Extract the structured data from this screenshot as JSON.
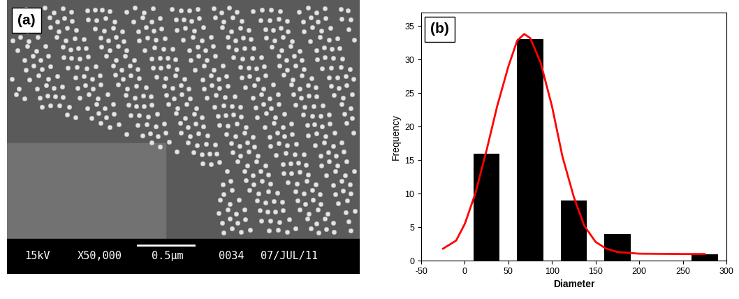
{
  "chart_data": [
    {
      "type": "image",
      "title": "(a)",
      "annotations": [
        "15kV",
        "X50,000",
        "0.5μm",
        "0034",
        "07/JUL/11"
      ]
    },
    {
      "type": "histogram",
      "title": "(b)",
      "x_label": "Diameter",
      "y_label": "Frequency",
      "bins": [
        0,
        50,
        100,
        150,
        200,
        250,
        300
      ],
      "values": [
        16,
        33,
        9,
        4,
        0,
        1
      ],
      "color": "#000000",
      "series": [
        {
          "type": "line",
          "color": "#ff0000",
          "line_style": "solid",
          "x": [
            -25,
            -10,
            0,
            12,
            25,
            37,
            50,
            60,
            68,
            75,
            87,
            100,
            112,
            125,
            137,
            150,
            162,
            175,
            200,
            250,
            275
          ],
          "values": [
            1.8,
            3.0,
            5.5,
            10,
            16.5,
            23,
            29,
            32.8,
            33.8,
            33.2,
            29.5,
            23,
            15.5,
            9.5,
            5.2,
            2.8,
            1.8,
            1.3,
            1.05,
            1.0,
            1.0
          ]
        }
      ],
      "xlim": [
        -50,
        300
      ],
      "xticks": [
        -50,
        0,
        50,
        100,
        150,
        200,
        250,
        300
      ],
      "ylim": [
        0,
        37
      ],
      "yticks": [
        0,
        5,
        10,
        15,
        20,
        25,
        30,
        35
      ]
    }
  ]
}
